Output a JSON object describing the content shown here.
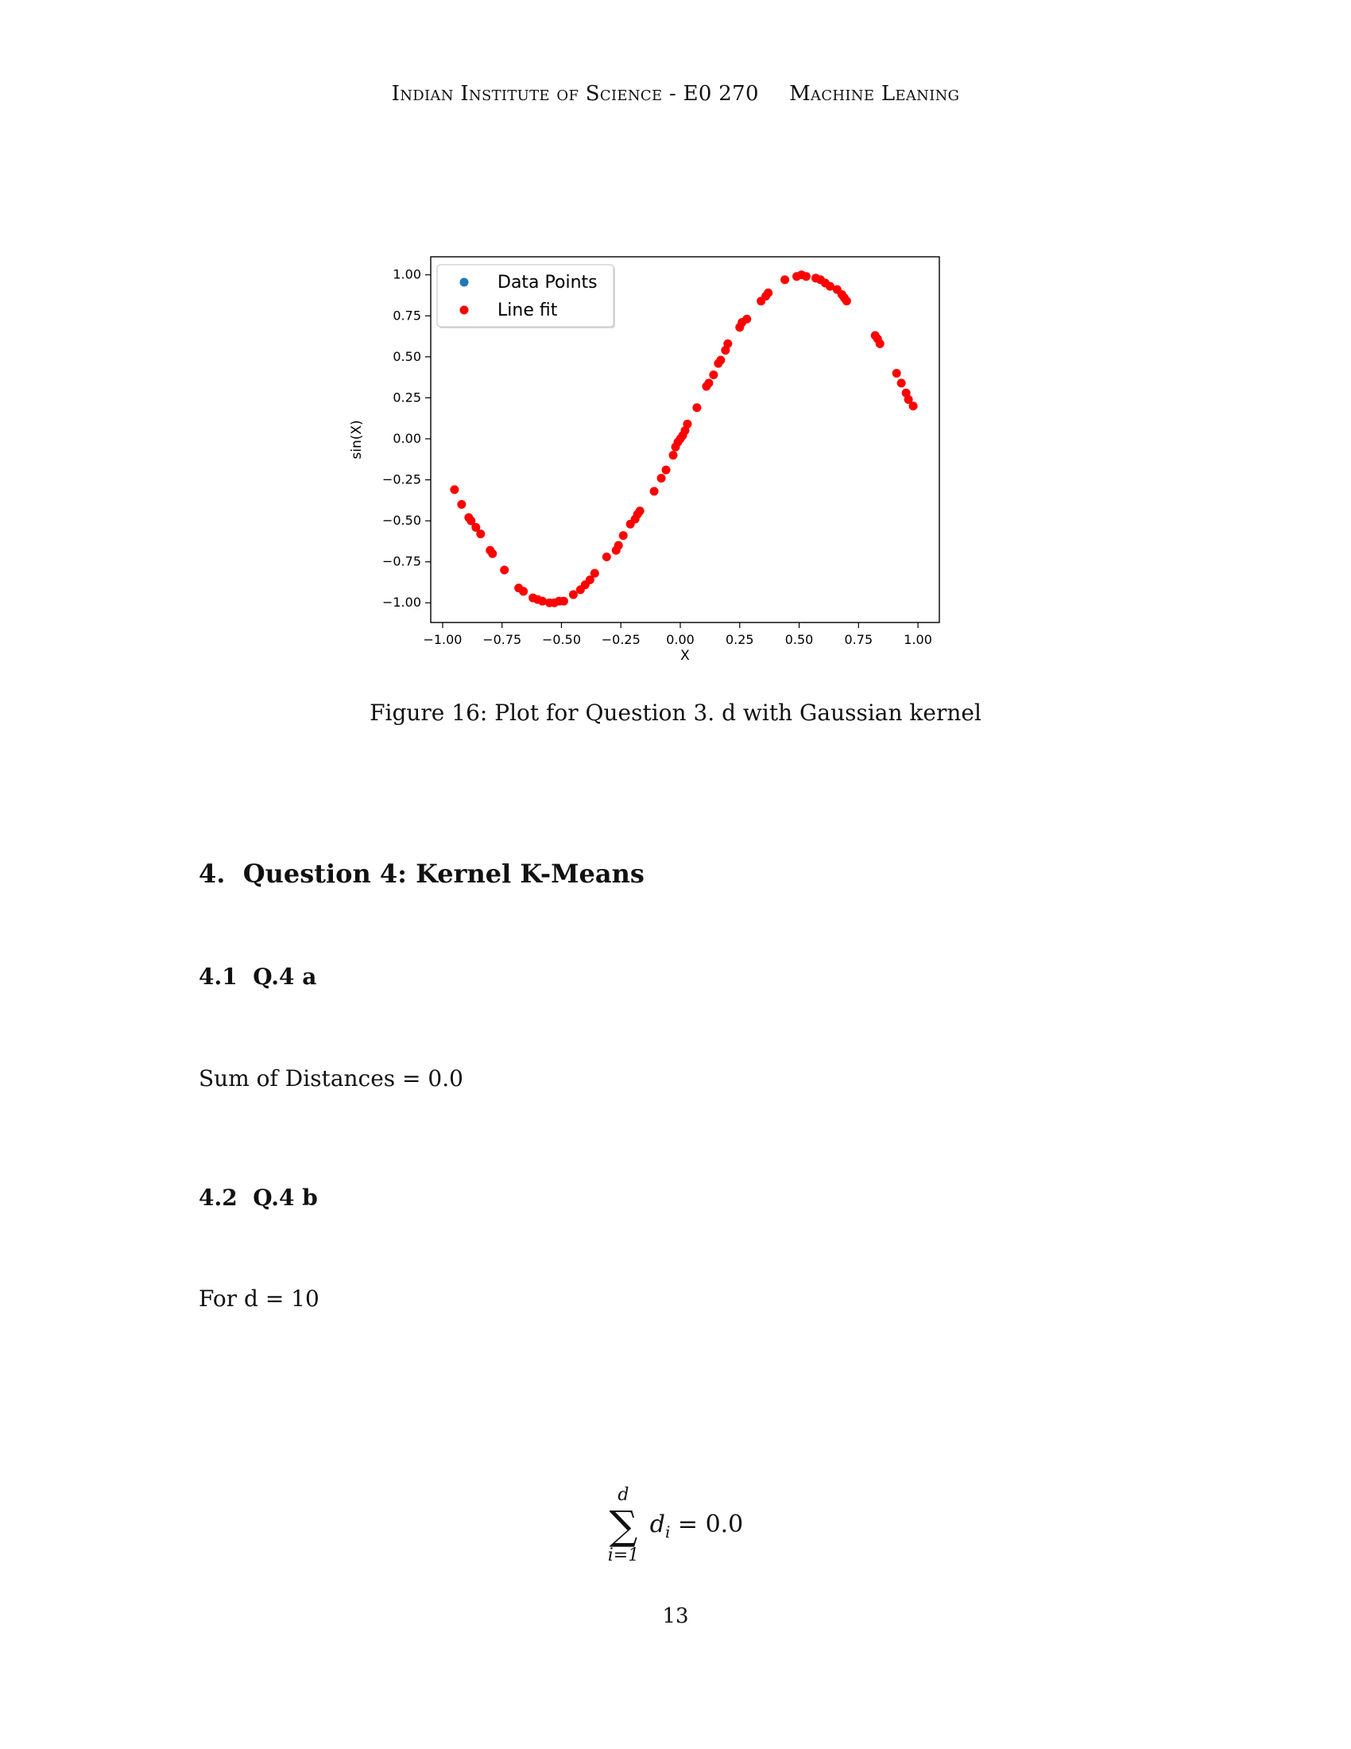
{
  "header": {
    "left": "Indian Institute of Science - E0 270",
    "right": "Machine Leaning"
  },
  "figure": {
    "caption": "Figure 16: Plot for Question 3. d with Gaussian kernel"
  },
  "chart_data": {
    "type": "scatter",
    "title": "",
    "xlabel": "X",
    "ylabel": "sin(X)",
    "xlim": [
      -1.05,
      1.09
    ],
    "ylim": [
      -1.12,
      1.11
    ],
    "x_ticks": [
      "−1.00",
      "−0.75",
      "−0.50",
      "−0.25",
      "0.00",
      "0.25",
      "0.50",
      "0.75",
      "1.00"
    ],
    "x_tick_values": [
      -1.0,
      -0.75,
      -0.5,
      -0.25,
      0.0,
      0.25,
      0.5,
      0.75,
      1.0
    ],
    "y_ticks": [
      "−1.00",
      "−0.75",
      "−0.50",
      "−0.25",
      "0.00",
      "0.25",
      "0.50",
      "0.75",
      "1.00"
    ],
    "y_tick_values": [
      -1.0,
      -0.75,
      -0.5,
      -0.25,
      0.0,
      0.25,
      0.5,
      0.75,
      1.0
    ],
    "legend": {
      "placement": "top-left",
      "entries": [
        {
          "label": "Data Points",
          "color": "#1f77b4"
        },
        {
          "label": "Line fit",
          "color": "#ff0000"
        }
      ]
    },
    "grid": false,
    "series": [
      {
        "name": "Line fit",
        "color": "#ff0000",
        "x": [
          -0.95,
          -0.92,
          -0.89,
          -0.88,
          -0.86,
          -0.84,
          -0.8,
          -0.79,
          -0.74,
          -0.68,
          -0.66,
          -0.62,
          -0.6,
          -0.58,
          -0.55,
          -0.53,
          -0.51,
          -0.49,
          -0.45,
          -0.42,
          -0.4,
          -0.38,
          -0.36,
          -0.31,
          -0.27,
          -0.26,
          -0.24,
          -0.21,
          -0.19,
          -0.18,
          -0.17,
          -0.11,
          -0.08,
          -0.06,
          -0.03,
          -0.02,
          -0.01,
          0.0,
          0.01,
          0.02,
          0.03,
          0.07,
          0.11,
          0.12,
          0.14,
          0.16,
          0.17,
          0.19,
          0.2,
          0.25,
          0.26,
          0.28,
          0.34,
          0.36,
          0.37,
          0.44,
          0.49,
          0.51,
          0.53,
          0.57,
          0.59,
          0.61,
          0.63,
          0.66,
          0.68,
          0.69,
          0.7,
          0.82,
          0.83,
          0.84,
          0.91,
          0.93,
          0.95,
          0.96,
          0.98
        ],
        "y": [
          -0.31,
          -0.4,
          -0.48,
          -0.5,
          -0.54,
          -0.58,
          -0.68,
          -0.7,
          -0.8,
          -0.91,
          -0.93,
          -0.97,
          -0.98,
          -0.99,
          -1.0,
          -1.0,
          -0.99,
          -0.99,
          -0.95,
          -0.92,
          -0.89,
          -0.86,
          -0.82,
          -0.72,
          -0.68,
          -0.65,
          -0.59,
          -0.52,
          -0.49,
          -0.46,
          -0.44,
          -0.32,
          -0.24,
          -0.19,
          -0.1,
          -0.05,
          -0.02,
          0.0,
          0.02,
          0.05,
          0.09,
          0.19,
          0.32,
          0.34,
          0.39,
          0.46,
          0.48,
          0.54,
          0.58,
          0.68,
          0.71,
          0.73,
          0.84,
          0.87,
          0.89,
          0.97,
          0.99,
          1.0,
          0.99,
          0.98,
          0.97,
          0.95,
          0.93,
          0.91,
          0.88,
          0.86,
          0.84,
          0.63,
          0.61,
          0.58,
          0.4,
          0.34,
          0.28,
          0.24,
          0.2
        ]
      }
    ]
  },
  "section": {
    "number": "4.",
    "title": "Question 4: Kernel K-Means"
  },
  "subsections": [
    {
      "number": "4.1",
      "title": "Q.4 a",
      "text": "Sum of Distances = 0.0"
    },
    {
      "number": "4.2",
      "title": "Q.4 b",
      "text": "For d = 10"
    }
  ],
  "equation": {
    "upper": "d",
    "lower": "i=1",
    "term": "d",
    "subscript": "i",
    "rhs": "= 0.0"
  },
  "page_number": "13"
}
